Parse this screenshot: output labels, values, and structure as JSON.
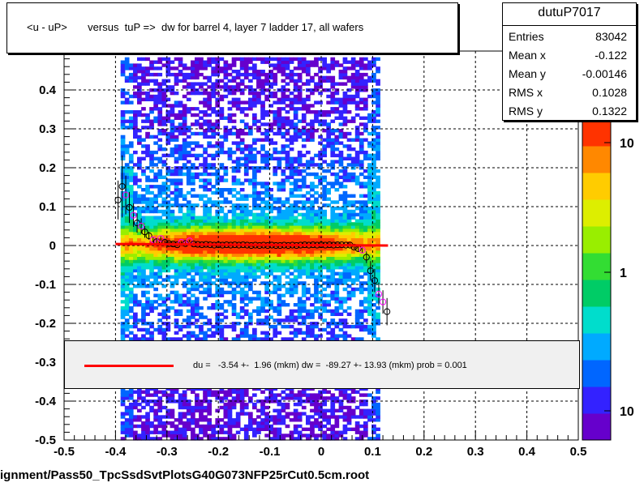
{
  "title": "<u - uP>       versus  tuP =>  dw for barrel 4, layer 7 ladder 17, all wafers",
  "stats": {
    "name": "dutuP7017",
    "rows": [
      {
        "key": "Entries",
        "value": "83042"
      },
      {
        "key": "Mean x",
        "value": "-0.122"
      },
      {
        "key": "Mean y",
        "value": "-0.00146"
      },
      {
        "key": "RMS x",
        "value": "0.1028"
      },
      {
        "key": "RMS y",
        "value": "0.1322"
      }
    ]
  },
  "fit_label": "du =   -3.54 +-  1.96 (mkm) dw =  -89.27 +- 13.93 (mkm) prob = 0.001",
  "file_label": "ignment/Pass50_TpcSsdSvtPlotsG40G073NFP25rCut0.5cm.root",
  "colors": {
    "fit_line": "#ff0000",
    "marker_black": "#000000",
    "marker_magenta": "#ff00ff",
    "grid": "#000000",
    "stat_box_fill": "#f0f0f0"
  },
  "chart_data": {
    "type": "heatmap",
    "xlim": [
      -0.5,
      0.5
    ],
    "ylim": [
      -0.5,
      0.5
    ],
    "x_ticks": [
      "-0.5",
      "-0.4",
      "-0.3",
      "-0.2",
      "-0.1",
      "0",
      "0.1",
      "0.2",
      "0.3",
      "0.4",
      "0.5"
    ],
    "y_ticks": [
      "-0.5",
      "-0.4",
      "-0.3",
      "-0.2",
      "-0.1",
      "0",
      "0.1",
      "0.2",
      "0.3",
      "0.4"
    ],
    "grid": true,
    "colorbar": {
      "scale": "log",
      "labels": [
        {
          "text": "10",
          "position": "top"
        },
        {
          "text": "1",
          "position": "middle"
        },
        {
          "text": "10",
          "position": "bottom"
        }
      ],
      "palette": [
        "#6600cc",
        "#3322ff",
        "#0066ff",
        "#00aaff",
        "#00ddcc",
        "#00cc66",
        "#33dd33",
        "#99ee00",
        "#ddee00",
        "#ffcc00",
        "#ff8800",
        "#ff3300"
      ]
    },
    "density": {
      "x_range": [
        -0.39,
        0.11
      ],
      "core_y_sigma": 0.03,
      "halo_y_extent": [
        -0.5,
        0.48
      ]
    },
    "profile_points": [
      {
        "x": -0.395,
        "y": 0.117,
        "err": 0.05,
        "color": "black"
      },
      {
        "x": -0.387,
        "y": 0.152,
        "err": 0.08,
        "color": "black"
      },
      {
        "x": -0.38,
        "y": 0.13,
        "err": 0.05,
        "color": "magenta"
      },
      {
        "x": -0.373,
        "y": 0.098,
        "err": 0.04,
        "color": "black"
      },
      {
        "x": -0.365,
        "y": 0.078,
        "err": 0.03,
        "color": "magenta"
      },
      {
        "x": -0.358,
        "y": 0.058,
        "err": 0.025,
        "color": "black"
      },
      {
        "x": -0.35,
        "y": 0.05,
        "err": 0.02,
        "color": "magenta"
      },
      {
        "x": -0.343,
        "y": 0.035,
        "err": 0.015,
        "color": "black"
      },
      {
        "x": -0.335,
        "y": 0.025,
        "err": 0.01,
        "color": "black"
      },
      {
        "x": -0.327,
        "y": 0.015,
        "err": 0.008,
        "color": "magenta"
      },
      {
        "x": -0.32,
        "y": 0.01,
        "err": 0.006,
        "color": "black"
      },
      {
        "x": -0.312,
        "y": 0.018,
        "err": 0.006,
        "color": "magenta"
      },
      {
        "x": -0.304,
        "y": 0.008,
        "err": 0.005,
        "color": "black"
      },
      {
        "x": -0.296,
        "y": 0.005,
        "err": 0.004,
        "color": "black"
      },
      {
        "x": -0.288,
        "y": 0.004,
        "err": 0.004,
        "color": "black"
      },
      {
        "x": -0.28,
        "y": 0.002,
        "err": 0.003,
        "color": "black"
      },
      {
        "x": -0.272,
        "y": 0.008,
        "err": 0.003,
        "color": "magenta"
      },
      {
        "x": -0.264,
        "y": 0.005,
        "err": 0.003,
        "color": "black"
      },
      {
        "x": -0.256,
        "y": 0.012,
        "err": 0.003,
        "color": "magenta"
      },
      {
        "x": -0.248,
        "y": 0.004,
        "err": 0.003,
        "color": "black"
      },
      {
        "x": -0.24,
        "y": 0.003,
        "err": 0.003,
        "color": "black"
      },
      {
        "x": -0.232,
        "y": 0.002,
        "err": 0.003,
        "color": "black"
      },
      {
        "x": -0.224,
        "y": 0.003,
        "err": 0.003,
        "color": "black"
      },
      {
        "x": -0.216,
        "y": 0.002,
        "err": 0.003,
        "color": "black"
      },
      {
        "x": -0.208,
        "y": 0.001,
        "err": 0.003,
        "color": "black"
      },
      {
        "x": -0.2,
        "y": 0.002,
        "err": 0.003,
        "color": "black"
      },
      {
        "x": -0.192,
        "y": 0.001,
        "err": 0.003,
        "color": "black"
      },
      {
        "x": -0.184,
        "y": 0.002,
        "err": 0.003,
        "color": "black"
      },
      {
        "x": -0.176,
        "y": 0.001,
        "err": 0.003,
        "color": "black"
      },
      {
        "x": -0.168,
        "y": 0.002,
        "err": 0.003,
        "color": "black"
      },
      {
        "x": -0.16,
        "y": 0.001,
        "err": 0.003,
        "color": "black"
      },
      {
        "x": -0.152,
        "y": 0.002,
        "err": 0.003,
        "color": "black"
      },
      {
        "x": -0.144,
        "y": 0.001,
        "err": 0.003,
        "color": "black"
      },
      {
        "x": -0.136,
        "y": 0.0,
        "err": 0.003,
        "color": "black"
      },
      {
        "x": -0.128,
        "y": 0.001,
        "err": 0.003,
        "color": "black"
      },
      {
        "x": -0.12,
        "y": 0.0,
        "err": 0.003,
        "color": "black"
      },
      {
        "x": -0.112,
        "y": 0.001,
        "err": 0.003,
        "color": "black"
      },
      {
        "x": -0.104,
        "y": 0.0,
        "err": 0.003,
        "color": "black"
      },
      {
        "x": -0.096,
        "y": 0.001,
        "err": 0.003,
        "color": "black"
      },
      {
        "x": -0.088,
        "y": 0.0,
        "err": 0.003,
        "color": "black"
      },
      {
        "x": -0.08,
        "y": 0.0,
        "err": 0.003,
        "color": "black"
      },
      {
        "x": -0.072,
        "y": 0.001,
        "err": 0.003,
        "color": "black"
      },
      {
        "x": -0.064,
        "y": 0.0,
        "err": 0.003,
        "color": "black"
      },
      {
        "x": -0.056,
        "y": 0.001,
        "err": 0.003,
        "color": "black"
      },
      {
        "x": -0.048,
        "y": 0.0,
        "err": 0.003,
        "color": "black"
      },
      {
        "x": -0.04,
        "y": 0.001,
        "err": 0.003,
        "color": "black"
      },
      {
        "x": -0.032,
        "y": 0.002,
        "err": 0.003,
        "color": "black"
      },
      {
        "x": -0.024,
        "y": 0.001,
        "err": 0.003,
        "color": "black"
      },
      {
        "x": -0.016,
        "y": 0.002,
        "err": 0.003,
        "color": "black"
      },
      {
        "x": -0.008,
        "y": 0.001,
        "err": 0.003,
        "color": "black"
      },
      {
        "x": 0.0,
        "y": 0.002,
        "err": 0.003,
        "color": "black"
      },
      {
        "x": 0.008,
        "y": 0.001,
        "err": 0.003,
        "color": "black"
      },
      {
        "x": 0.016,
        "y": 0.002,
        "err": 0.003,
        "color": "black"
      },
      {
        "x": 0.024,
        "y": 0.001,
        "err": 0.003,
        "color": "black"
      },
      {
        "x": 0.032,
        "y": 0.002,
        "err": 0.003,
        "color": "black"
      },
      {
        "x": 0.04,
        "y": 0.002,
        "err": 0.003,
        "color": "black"
      },
      {
        "x": 0.048,
        "y": 0.001,
        "err": 0.003,
        "color": "black"
      },
      {
        "x": 0.056,
        "y": 0.001,
        "err": 0.004,
        "color": "black"
      },
      {
        "x": 0.064,
        "y": -0.004,
        "err": 0.005,
        "color": "black"
      },
      {
        "x": 0.072,
        "y": -0.008,
        "err": 0.006,
        "color": "black"
      },
      {
        "x": 0.08,
        "y": -0.012,
        "err": 0.008,
        "color": "magenta"
      },
      {
        "x": 0.088,
        "y": -0.03,
        "err": 0.015,
        "color": "black"
      },
      {
        "x": 0.096,
        "y": -0.065,
        "err": 0.025,
        "color": "black"
      },
      {
        "x": 0.104,
        "y": -0.09,
        "err": 0.03,
        "color": "black"
      },
      {
        "x": 0.112,
        "y": -0.125,
        "err": 0.03,
        "color": "magenta"
      },
      {
        "x": 0.12,
        "y": -0.145,
        "err": 0.03,
        "color": "magenta"
      },
      {
        "x": 0.128,
        "y": -0.17,
        "err": 0.035,
        "color": "black"
      }
    ],
    "fit_line": {
      "x": [
        -0.4,
        0.13
      ],
      "y": [
        0.004,
        -0.0
      ]
    }
  }
}
